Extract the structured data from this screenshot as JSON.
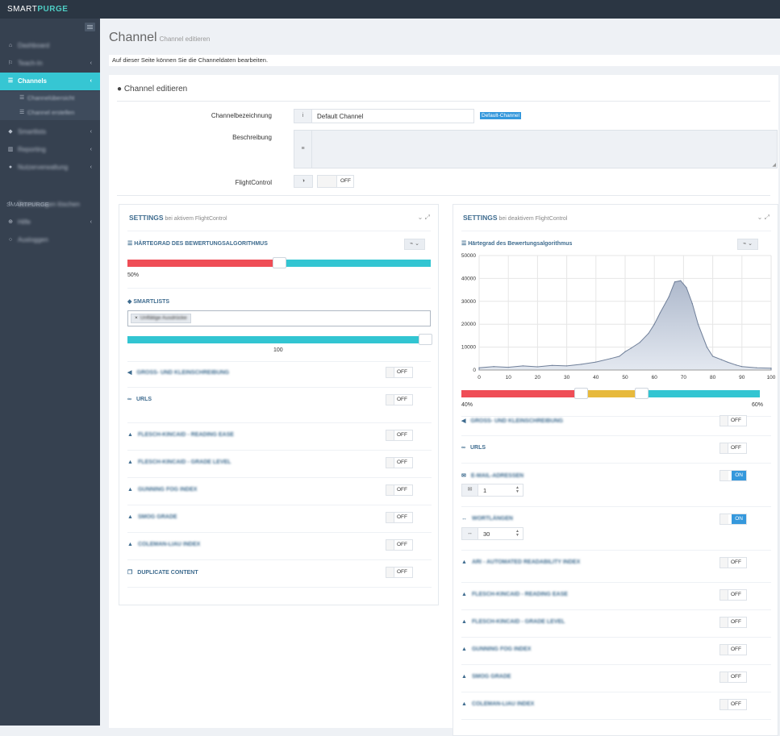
{
  "brand": {
    "part1": "SMART",
    "part2": "PURGE"
  },
  "sidebar": {
    "items": [
      {
        "label": "Dashboard",
        "icon": "home-icon"
      },
      {
        "label": "Teach-In",
        "icon": "flag-icon"
      },
      {
        "label": "Channels",
        "icon": "sliders-icon"
      },
      {
        "label": "Smartlists",
        "icon": "tags-icon"
      },
      {
        "label": "Reporting",
        "icon": "chart-icon"
      },
      {
        "label": "Nutzerverwaltung",
        "icon": "user-icon"
      }
    ],
    "subitems": [
      {
        "label": "Channelübersicht"
      },
      {
        "label": "Channel erstellen"
      }
    ],
    "section": "SMARTPURGE",
    "bottom": [
      {
        "label": "Bewertungen löschen"
      },
      {
        "label": "Hilfe"
      },
      {
        "label": "Ausloggen"
      }
    ]
  },
  "page": {
    "title": "Channel",
    "subtitle": "Channel editieren",
    "note": "Auf dieser Seite können Sie die Channeldaten bearbeiten."
  },
  "form": {
    "portlet_title": "Channel editieren",
    "name_label": "Channelbezeichnung",
    "name_value": "Default Channel",
    "badge": "Default-Channel",
    "desc_label": "Beschreibung",
    "flight_label": "FlightControl",
    "flight_state": "OFF"
  },
  "left": {
    "title": "SETTINGS",
    "subtitle": "bei aktivem FlightControl",
    "algo_title": "HÄRTEGRAD DES BEWERTUNGSALGORITHMUS",
    "algo_value": "50%",
    "algo_level": 0.5,
    "smartlists_title": "SMARTLISTS",
    "tag": "Unflätige Ausdrücke",
    "smart_value": "100",
    "rows": [
      {
        "label": "GROSS- UND KLEINSCHREIBUNG",
        "state": "OFF",
        "icon": "bullhorn-icon"
      },
      {
        "label": "URLS",
        "state": "OFF",
        "icon": "link-icon"
      },
      {
        "label": "FLESCH-KINCAID - READING EASE",
        "state": "OFF",
        "icon": "graduation-icon"
      },
      {
        "label": "FLESCH-KINCAID - GRADE LEVEL",
        "state": "OFF",
        "icon": "graduation-icon"
      },
      {
        "label": "GUNNING FOG INDEX",
        "state": "OFF",
        "icon": "graduation-icon"
      },
      {
        "label": "SMOG GRADE",
        "state": "OFF",
        "icon": "graduation-icon"
      },
      {
        "label": "COLEMAN-LIAU INDEX",
        "state": "OFF",
        "icon": "graduation-icon"
      },
      {
        "label": "DUPLICATE CONTENT",
        "state": "OFF",
        "icon": "copy-icon"
      }
    ]
  },
  "right": {
    "title": "SETTINGS",
    "subtitle": "bei deaktivem FlightControl",
    "algo_title": "Härtegrad des Bewertungsalgorithmus",
    "range_low": "40%",
    "range_high": "60%",
    "rows": [
      {
        "label": "GROSS- UND KLEINSCHREIBUNG",
        "state": "OFF",
        "icon": "bullhorn-icon"
      },
      {
        "label": "URLS",
        "state": "OFF",
        "icon": "link-icon"
      },
      {
        "label": "E-MAIL-ADRESSEN",
        "state": "ON",
        "icon": "envelope-icon",
        "value": "1"
      },
      {
        "label": "WORTLÄNGEN",
        "state": "ON",
        "icon": "arrows-h-icon",
        "value": "30"
      },
      {
        "label": "ARI - AUTOMATED READABILITY INDEX",
        "state": "OFF",
        "icon": "graduation-icon"
      },
      {
        "label": "FLESCH-KINCAID - READING EASE",
        "state": "OFF",
        "icon": "graduation-icon"
      },
      {
        "label": "FLESCH-KINCAID - GRADE LEVEL",
        "state": "OFF",
        "icon": "graduation-icon"
      },
      {
        "label": "GUNNING FOG INDEX",
        "state": "OFF",
        "icon": "graduation-icon"
      },
      {
        "label": "SMOG GRADE",
        "state": "OFF",
        "icon": "graduation-icon"
      },
      {
        "label": "COLEMAN-LIAU INDEX",
        "state": "OFF",
        "icon": "graduation-icon"
      }
    ]
  },
  "chart_data": {
    "type": "area",
    "x": [
      0,
      5,
      10,
      15,
      20,
      25,
      30,
      35,
      40,
      45,
      48,
      50,
      52,
      55,
      58,
      60,
      62,
      65,
      67,
      69,
      71,
      73,
      75,
      78,
      80,
      83,
      85,
      88,
      90,
      95,
      100
    ],
    "values": [
      1000,
      1500,
      1200,
      1800,
      1400,
      2000,
      1800,
      2500,
      3500,
      5000,
      6000,
      8000,
      9500,
      12000,
      16000,
      20000,
      25000,
      32000,
      38500,
      39000,
      36000,
      29000,
      20000,
      10000,
      6000,
      4500,
      3500,
      2200,
      1500,
      1000,
      800
    ],
    "xlim": [
      0,
      100
    ],
    "ylim": [
      0,
      50000
    ],
    "xticks": [
      0,
      10,
      20,
      30,
      40,
      50,
      60,
      70,
      80,
      90,
      100
    ],
    "yticks": [
      0,
      10000,
      20000,
      30000,
      40000,
      50000
    ]
  }
}
